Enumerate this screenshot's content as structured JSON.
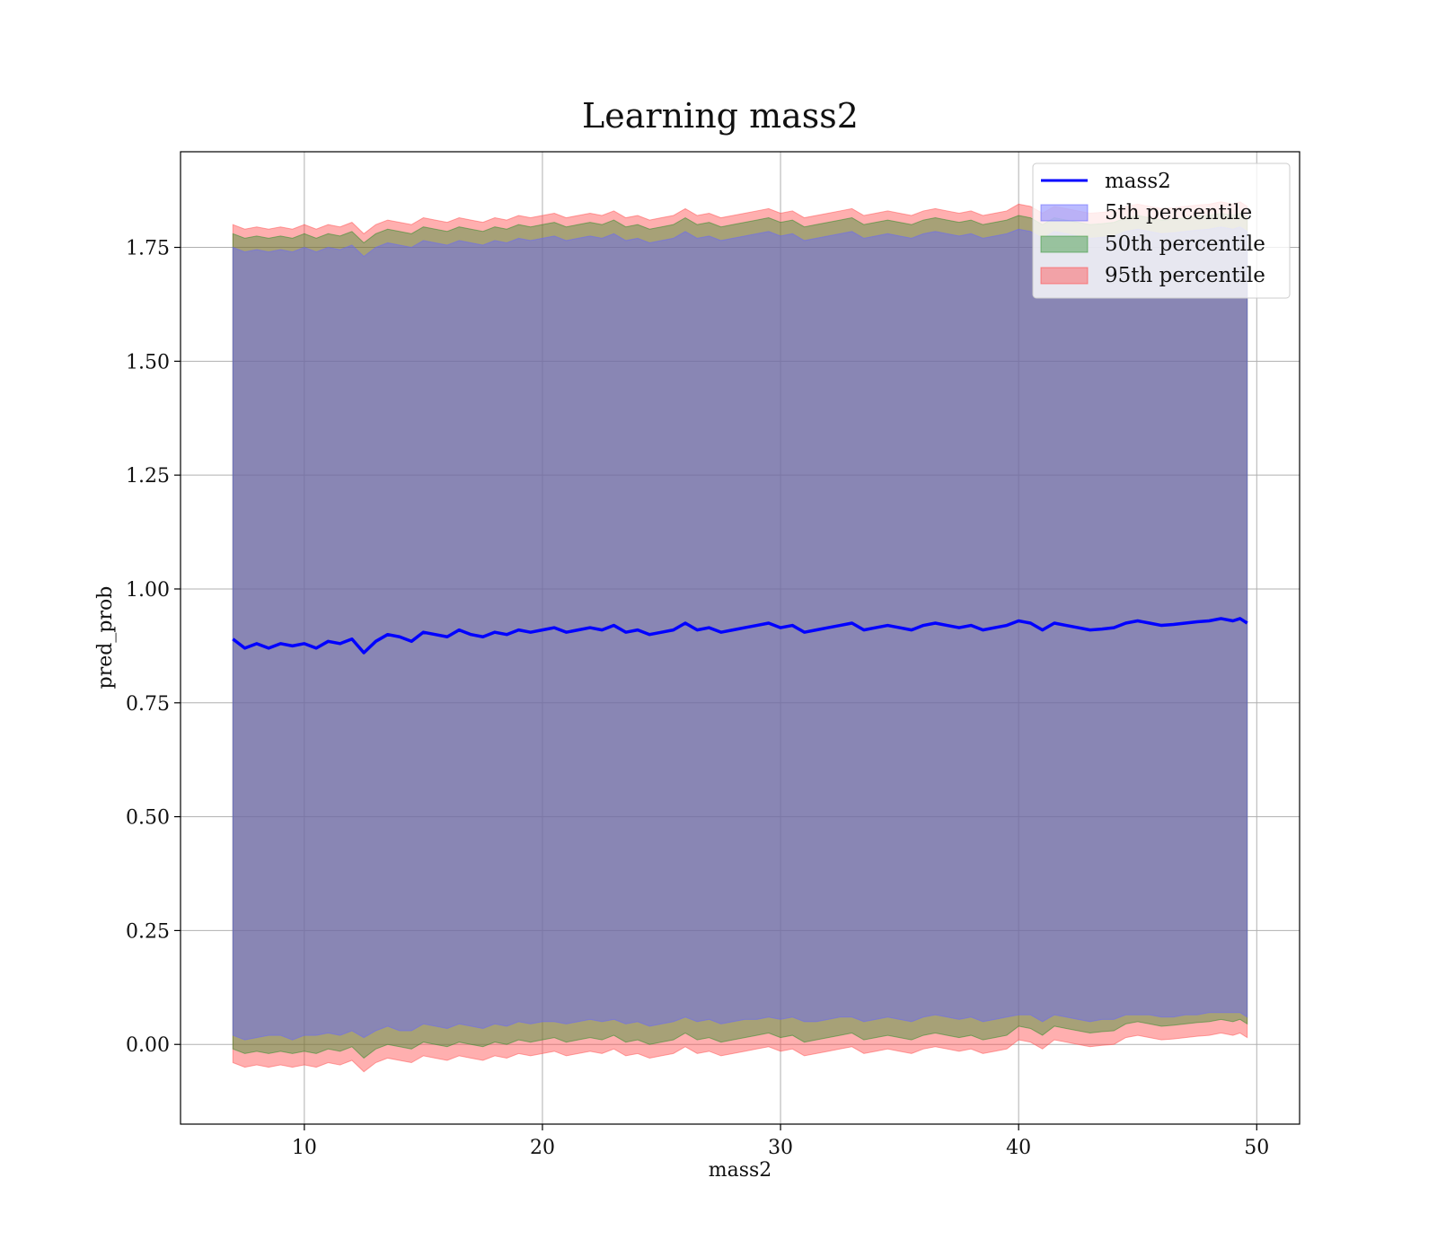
{
  "chart_data": {
    "type": "line",
    "title": "Learning mass2",
    "xlabel": "mass2",
    "ylabel": "pred_prob",
    "xlim": [
      4.8,
      51.8
    ],
    "ylim": [
      -0.175,
      1.96
    ],
    "xticks": [
      10,
      20,
      30,
      40,
      50
    ],
    "yticks": [
      0.0,
      0.25,
      0.5,
      0.75,
      1.0,
      1.25,
      1.5,
      1.75
    ],
    "xtick_labels": [
      "10",
      "20",
      "30",
      "40",
      "50"
    ],
    "ytick_labels": [
      "0.00",
      "0.25",
      "0.50",
      "0.75",
      "1.00",
      "1.25",
      "1.50",
      "1.75"
    ],
    "grid": true,
    "legend_position": "top-right",
    "line_series": {
      "name": "mass2",
      "color": "#0000ff",
      "x": [
        7.0,
        7.5,
        8.0,
        8.5,
        9.0,
        9.5,
        10.0,
        10.5,
        11.0,
        11.5,
        12.0,
        12.5,
        13.0,
        13.5,
        14.0,
        14.5,
        15.0,
        15.5,
        16.0,
        16.5,
        17.0,
        17.5,
        18.0,
        18.5,
        19.0,
        19.5,
        20.0,
        20.5,
        21.0,
        21.5,
        22.0,
        22.5,
        23.0,
        23.5,
        24.0,
        24.5,
        25.0,
        25.5,
        26.0,
        26.5,
        27.0,
        27.5,
        28.0,
        28.5,
        29.0,
        29.5,
        30.0,
        30.5,
        31.0,
        31.5,
        32.0,
        32.5,
        33.0,
        33.5,
        34.0,
        34.5,
        35.0,
        35.5,
        36.0,
        36.5,
        37.0,
        37.5,
        38.0,
        38.5,
        39.0,
        39.5,
        40.0,
        40.5,
        41.0,
        41.5,
        42.0,
        42.5,
        43.0,
        43.5,
        44.0,
        44.5,
        45.0,
        45.5,
        46.0,
        46.5,
        47.0,
        47.5,
        48.0,
        48.5,
        49.0,
        49.3,
        49.6
      ],
      "y": [
        0.89,
        0.87,
        0.88,
        0.87,
        0.88,
        0.875,
        0.88,
        0.87,
        0.885,
        0.88,
        0.89,
        0.86,
        0.885,
        0.9,
        0.895,
        0.885,
        0.905,
        0.9,
        0.895,
        0.91,
        0.9,
        0.895,
        0.905,
        0.9,
        0.91,
        0.905,
        0.91,
        0.915,
        0.905,
        0.91,
        0.915,
        0.91,
        0.92,
        0.905,
        0.91,
        0.9,
        0.905,
        0.91,
        0.925,
        0.91,
        0.915,
        0.905,
        0.91,
        0.915,
        0.92,
        0.925,
        0.915,
        0.92,
        0.905,
        0.91,
        0.915,
        0.92,
        0.925,
        0.91,
        0.915,
        0.92,
        0.915,
        0.91,
        0.92,
        0.925,
        0.92,
        0.915,
        0.92,
        0.91,
        0.915,
        0.92,
        0.93,
        0.925,
        0.91,
        0.925,
        0.92,
        0.915,
        0.91,
        0.912,
        0.915,
        0.925,
        0.93,
        0.925,
        0.92,
        0.922,
        0.925,
        0.928,
        0.93,
        0.935,
        0.93,
        0.935,
        0.925
      ]
    },
    "bands": [
      {
        "name": "5th percentile",
        "color": "#6666ff",
        "lower": [
          0.02,
          0.01,
          0.015,
          0.02,
          0.02,
          0.01,
          0.02,
          0.02,
          0.025,
          0.02,
          0.03,
          0.015,
          0.03,
          0.04,
          0.03,
          0.03,
          0.045,
          0.04,
          0.035,
          0.045,
          0.04,
          0.035,
          0.045,
          0.04,
          0.05,
          0.045,
          0.05,
          0.05,
          0.045,
          0.05,
          0.055,
          0.05,
          0.055,
          0.045,
          0.05,
          0.04,
          0.045,
          0.05,
          0.06,
          0.05,
          0.055,
          0.045,
          0.05,
          0.055,
          0.055,
          0.06,
          0.055,
          0.06,
          0.05,
          0.05,
          0.055,
          0.06,
          0.06,
          0.05,
          0.055,
          0.06,
          0.055,
          0.05,
          0.06,
          0.065,
          0.06,
          0.055,
          0.06,
          0.05,
          0.055,
          0.06,
          0.065,
          0.065,
          0.05,
          0.065,
          0.06,
          0.055,
          0.05,
          0.055,
          0.055,
          0.065,
          0.065,
          0.065,
          0.06,
          0.06,
          0.065,
          0.065,
          0.07,
          0.07,
          0.07,
          0.07,
          0.06
        ],
        "upper": [
          1.75,
          1.74,
          1.745,
          1.74,
          1.745,
          1.74,
          1.75,
          1.74,
          1.75,
          1.745,
          1.755,
          1.73,
          1.75,
          1.76,
          1.755,
          1.75,
          1.765,
          1.76,
          1.755,
          1.765,
          1.76,
          1.755,
          1.765,
          1.76,
          1.77,
          1.765,
          1.77,
          1.775,
          1.765,
          1.77,
          1.775,
          1.77,
          1.78,
          1.765,
          1.77,
          1.76,
          1.765,
          1.77,
          1.785,
          1.77,
          1.775,
          1.765,
          1.77,
          1.775,
          1.78,
          1.785,
          1.775,
          1.78,
          1.765,
          1.77,
          1.775,
          1.78,
          1.785,
          1.77,
          1.775,
          1.78,
          1.775,
          1.77,
          1.78,
          1.785,
          1.78,
          1.775,
          1.78,
          1.77,
          1.775,
          1.78,
          1.79,
          1.785,
          1.77,
          1.785,
          1.78,
          1.775,
          1.77,
          1.772,
          1.775,
          1.785,
          1.79,
          1.785,
          1.78,
          1.782,
          1.785,
          1.788,
          1.79,
          1.795,
          1.79,
          1.795,
          1.785
        ]
      },
      {
        "name": "50th percentile",
        "color": "#228b22",
        "lower": [
          -0.01,
          -0.02,
          -0.015,
          -0.02,
          -0.015,
          -0.02,
          -0.015,
          -0.02,
          -0.01,
          -0.015,
          -0.005,
          -0.03,
          -0.01,
          0.0,
          -0.005,
          -0.01,
          0.005,
          0.0,
          -0.005,
          0.005,
          0.0,
          -0.005,
          0.005,
          0.0,
          0.01,
          0.005,
          0.01,
          0.015,
          0.005,
          0.01,
          0.015,
          0.01,
          0.02,
          0.005,
          0.01,
          0.0,
          0.005,
          0.01,
          0.025,
          0.01,
          0.015,
          0.005,
          0.01,
          0.015,
          0.02,
          0.025,
          0.015,
          0.02,
          0.005,
          0.01,
          0.015,
          0.02,
          0.025,
          0.01,
          0.015,
          0.02,
          0.015,
          0.01,
          0.02,
          0.025,
          0.02,
          0.015,
          0.02,
          0.01,
          0.015,
          0.02,
          0.04,
          0.035,
          0.02,
          0.04,
          0.035,
          0.03,
          0.025,
          0.028,
          0.03,
          0.045,
          0.05,
          0.045,
          0.04,
          0.042,
          0.045,
          0.048,
          0.05,
          0.055,
          0.05,
          0.055,
          0.045
        ],
        "upper": [
          1.78,
          1.77,
          1.775,
          1.77,
          1.775,
          1.77,
          1.78,
          1.77,
          1.78,
          1.775,
          1.785,
          1.76,
          1.78,
          1.79,
          1.785,
          1.78,
          1.795,
          1.79,
          1.785,
          1.795,
          1.79,
          1.785,
          1.795,
          1.79,
          1.8,
          1.795,
          1.8,
          1.805,
          1.795,
          1.8,
          1.805,
          1.8,
          1.81,
          1.795,
          1.8,
          1.79,
          1.795,
          1.8,
          1.815,
          1.8,
          1.805,
          1.795,
          1.8,
          1.805,
          1.81,
          1.815,
          1.805,
          1.81,
          1.795,
          1.8,
          1.805,
          1.81,
          1.815,
          1.8,
          1.805,
          1.81,
          1.805,
          1.8,
          1.81,
          1.815,
          1.81,
          1.805,
          1.81,
          1.8,
          1.805,
          1.81,
          1.82,
          1.815,
          1.8,
          1.815,
          1.81,
          1.805,
          1.8,
          1.802,
          1.805,
          1.815,
          1.82,
          1.815,
          1.81,
          1.812,
          1.815,
          1.818,
          1.82,
          1.825,
          1.82,
          1.825,
          1.815
        ]
      },
      {
        "name": "95th percentile",
        "color": "#ff4d4d",
        "lower": [
          -0.04,
          -0.05,
          -0.045,
          -0.05,
          -0.045,
          -0.05,
          -0.045,
          -0.05,
          -0.04,
          -0.045,
          -0.035,
          -0.06,
          -0.04,
          -0.03,
          -0.035,
          -0.04,
          -0.025,
          -0.03,
          -0.035,
          -0.025,
          -0.03,
          -0.035,
          -0.025,
          -0.03,
          -0.02,
          -0.025,
          -0.02,
          -0.015,
          -0.025,
          -0.02,
          -0.015,
          -0.02,
          -0.01,
          -0.025,
          -0.02,
          -0.03,
          -0.025,
          -0.02,
          -0.005,
          -0.02,
          -0.015,
          -0.025,
          -0.02,
          -0.015,
          -0.01,
          -0.005,
          -0.015,
          -0.01,
          -0.025,
          -0.02,
          -0.015,
          -0.01,
          -0.005,
          -0.02,
          -0.015,
          -0.01,
          -0.015,
          -0.02,
          -0.01,
          -0.005,
          -0.01,
          -0.015,
          -0.01,
          -0.02,
          -0.015,
          -0.01,
          0.01,
          0.005,
          -0.01,
          0.01,
          0.005,
          0.0,
          -0.005,
          -0.002,
          0.0,
          0.015,
          0.02,
          0.015,
          0.01,
          0.012,
          0.015,
          0.018,
          0.02,
          0.025,
          0.02,
          0.025,
          0.015
        ],
        "upper": [
          1.8,
          1.79,
          1.795,
          1.79,
          1.795,
          1.79,
          1.8,
          1.79,
          1.8,
          1.795,
          1.805,
          1.78,
          1.8,
          1.81,
          1.805,
          1.8,
          1.815,
          1.81,
          1.805,
          1.815,
          1.81,
          1.805,
          1.815,
          1.81,
          1.82,
          1.815,
          1.82,
          1.825,
          1.815,
          1.82,
          1.825,
          1.82,
          1.83,
          1.815,
          1.82,
          1.81,
          1.815,
          1.82,
          1.835,
          1.82,
          1.825,
          1.815,
          1.82,
          1.825,
          1.83,
          1.835,
          1.825,
          1.83,
          1.815,
          1.82,
          1.825,
          1.83,
          1.835,
          1.82,
          1.825,
          1.83,
          1.825,
          1.82,
          1.83,
          1.835,
          1.83,
          1.825,
          1.83,
          1.82,
          1.825,
          1.83,
          1.845,
          1.84,
          1.825,
          1.84,
          1.835,
          1.83,
          1.825,
          1.827,
          1.83,
          1.84,
          1.845,
          1.84,
          1.835,
          1.837,
          1.84,
          1.843,
          1.845,
          1.85,
          1.845,
          1.85,
          1.84
        ]
      }
    ],
    "legend": [
      "mass2",
      "5th percentile",
      "50th percentile",
      "95th percentile"
    ]
  }
}
